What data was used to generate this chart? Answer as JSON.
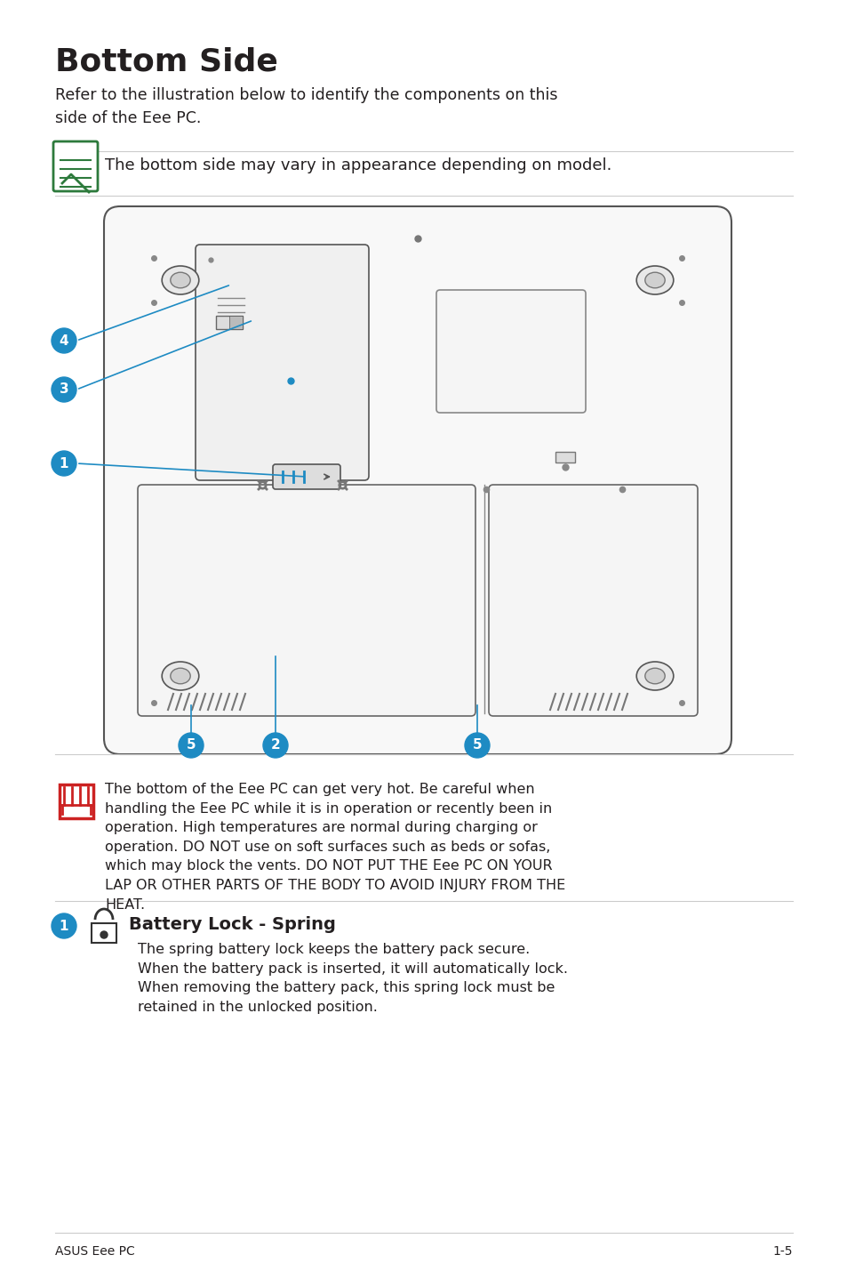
{
  "title": "Bottom Side",
  "intro_text": "Refer to the illustration below to identify the components on this\nside of the Eee PC.",
  "note_text": "The bottom side may vary in appearance depending on model.",
  "warning_text": "The bottom of the Eee PC can get very hot. Be careful when\nhandling the Eee PC while it is in operation or recently been in\noperation. High temperatures are normal during charging or\noperation. DO NOT use on soft surfaces such as beds or sofas,\nwhich may block the vents. DO NOT PUT THE Eee PC ON YOUR\nLAP OR OTHER PARTS OF THE BODY TO AVOID INJURY FROM THE\nHEAT.",
  "section1_title": "Battery Lock - Spring",
  "section1_text": "The spring battery lock keeps the battery pack secure.\nWhen the battery pack is inserted, it will automatically lock.\nWhen removing the battery pack, this spring lock must be\nretained in the unlocked position.",
  "footer_left": "ASUS Eee PC",
  "footer_right": "1-5",
  "bg_color": "#ffffff",
  "text_color": "#231f20",
  "blue_color": "#1e8bc3",
  "title_fontsize": 26,
  "body_fontsize": 12.5,
  "note_fontsize": 13,
  "section_title_fontsize": 14
}
